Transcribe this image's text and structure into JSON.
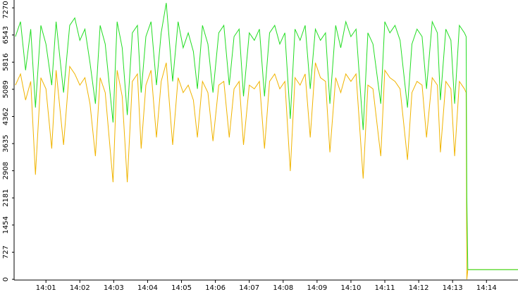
{
  "chart_data": {
    "type": "line",
    "x": [
      0.1,
      0.25,
      0.4,
      0.55,
      0.69,
      0.85,
      1.0,
      1.17,
      1.3,
      1.52,
      1.7,
      1.85,
      2.0,
      2.15,
      2.3,
      2.46,
      2.6,
      2.75,
      2.98,
      3.1,
      3.25,
      3.4,
      3.55,
      3.7,
      3.81,
      3.95,
      4.1,
      4.26,
      4.4,
      4.55,
      4.74,
      4.9,
      5.05,
      5.2,
      5.35,
      5.47,
      5.62,
      5.78,
      5.93,
      6.1,
      6.25,
      6.41,
      6.55,
      6.7,
      6.83,
      7.0,
      7.15,
      7.3,
      7.45,
      7.6,
      7.75,
      7.9,
      8.05,
      8.21,
      8.35,
      8.5,
      8.65,
      8.8,
      8.95,
      9.1,
      9.25,
      9.38,
      9.55,
      9.7,
      9.85,
      10.0,
      10.15,
      10.36,
      10.5,
      10.65,
      10.88,
      11.0,
      11.15,
      11.3,
      11.45,
      11.67,
      11.8,
      11.95,
      12.1,
      12.23,
      12.4,
      12.55,
      12.64,
      12.8,
      12.95,
      13.06,
      13.2,
      13.35,
      13.4,
      13.42,
      13.45,
      14.93
    ],
    "series": [
      {
        "color": "#22dd22",
        "values": [
          6500,
          6900,
          5600,
          6700,
          4600,
          6800,
          6300,
          5200,
          6900,
          5000,
          6800,
          7000,
          6400,
          6700,
          5800,
          4700,
          6800,
          6300,
          4200,
          6900,
          6200,
          4400,
          6600,
          6800,
          5000,
          6500,
          6900,
          5200,
          6600,
          7400,
          5300,
          6900,
          6200,
          6600,
          6100,
          5100,
          6800,
          6300,
          5000,
          6600,
          6800,
          5200,
          6500,
          6700,
          4900,
          6600,
          6400,
          6700,
          4900,
          6600,
          6800,
          6300,
          6600,
          4300,
          6700,
          6400,
          6800,
          5100,
          6700,
          6400,
          6600,
          4700,
          6800,
          6200,
          6900,
          6500,
          6700,
          4000,
          6600,
          6300,
          4700,
          6900,
          6600,
          6800,
          6400,
          4600,
          6300,
          6700,
          6500,
          5100,
          6900,
          6600,
          4800,
          6700,
          6400,
          4700,
          6800,
          6600,
          6500,
          2200,
          260,
          260
        ]
      },
      {
        "color": "#f0b400",
        "values": [
          5200,
          5500,
          4800,
          5300,
          2800,
          5400,
          5100,
          3500,
          5600,
          3600,
          5700,
          5500,
          5200,
          5400,
          4700,
          3300,
          5400,
          5000,
          2600,
          5600,
          4900,
          2600,
          5300,
          5500,
          3500,
          5200,
          5600,
          3800,
          5300,
          5800,
          3600,
          5400,
          5000,
          5200,
          4800,
          3800,
          5300,
          5000,
          3700,
          5200,
          5300,
          3800,
          5100,
          5300,
          3600,
          5200,
          5100,
          5300,
          3500,
          5300,
          5500,
          5100,
          5300,
          2900,
          5400,
          5200,
          5500,
          3800,
          5800,
          5400,
          5300,
          3400,
          5400,
          5000,
          5500,
          5300,
          5500,
          2700,
          5200,
          5100,
          3300,
          5600,
          5400,
          5300,
          5100,
          3200,
          5000,
          5300,
          5200,
          3800,
          5400,
          5200,
          3400,
          5300,
          5100,
          3300,
          5300,
          5100,
          5000,
          0,
          260,
          260
        ]
      }
    ],
    "xlim": [
      0.06,
      14.93
    ],
    "ylim": [
      0,
      7480
    ],
    "xticks": [
      {
        "value": 1,
        "label": "14:01"
      },
      {
        "value": 2,
        "label": "14:02"
      },
      {
        "value": 3,
        "label": "14:03"
      },
      {
        "value": 4,
        "label": "14:04"
      },
      {
        "value": 5,
        "label": "14:05"
      },
      {
        "value": 6,
        "label": "14:06"
      },
      {
        "value": 7,
        "label": "14:07"
      },
      {
        "value": 8,
        "label": "14:08"
      },
      {
        "value": 9,
        "label": "14:09"
      },
      {
        "value": 10,
        "label": "14:10"
      },
      {
        "value": 11,
        "label": "14:11"
      },
      {
        "value": 12,
        "label": "14:12"
      },
      {
        "value": 13,
        "label": "14:13"
      },
      {
        "value": 14,
        "label": "14:14"
      }
    ],
    "yticks": [
      0,
      727,
      1454,
      2181,
      2908,
      3635,
      4362,
      5089,
      5816,
      6543,
      7270
    ]
  }
}
